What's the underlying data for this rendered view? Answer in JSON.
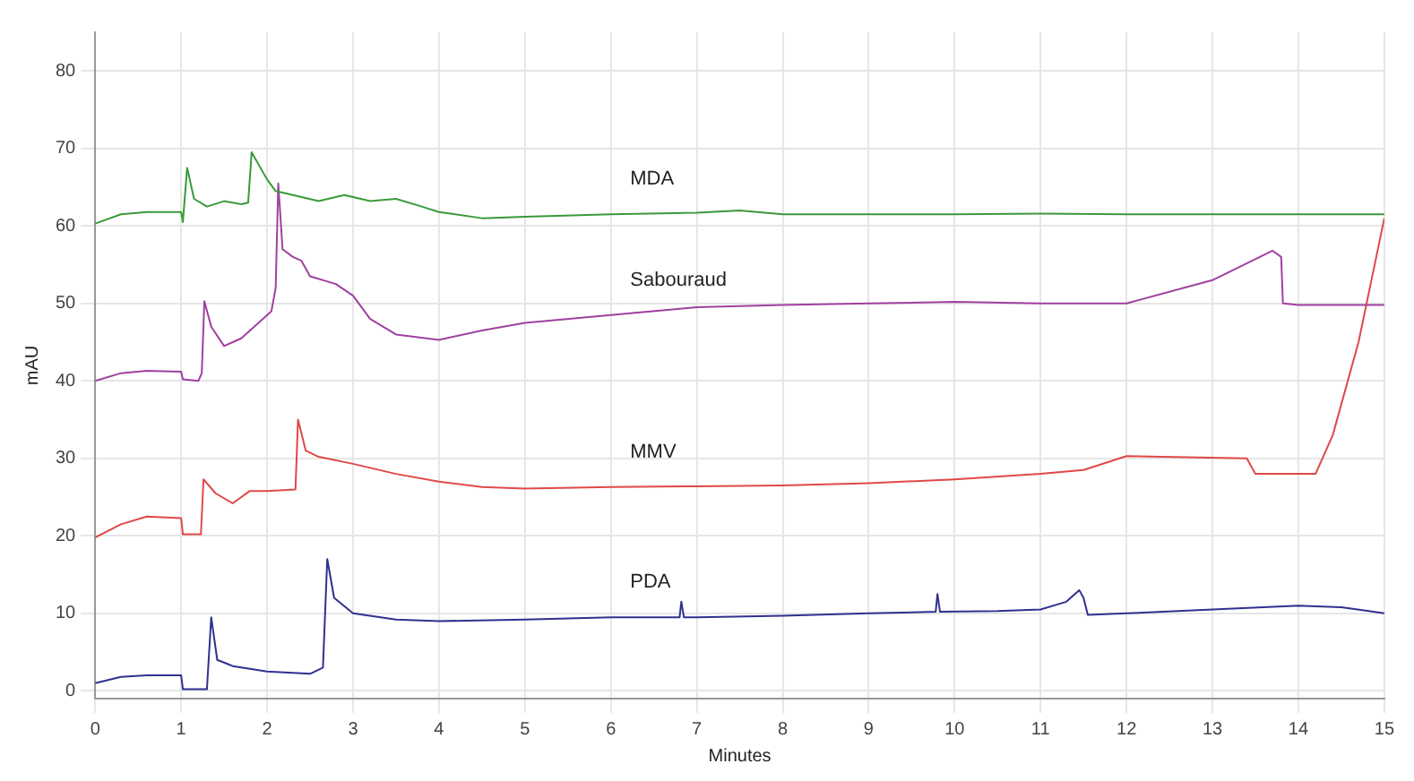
{
  "chart_data": {
    "type": "line",
    "xlabel": "Minutes",
    "ylabel": "mAU",
    "xlim": [
      0,
      15
    ],
    "xticks": [
      0,
      1,
      2,
      3,
      4,
      5,
      6,
      7,
      8,
      9,
      10,
      11,
      12,
      13,
      14,
      15
    ],
    "ylim": [
      -1,
      85
    ],
    "yticks": [
      0,
      10,
      20,
      30,
      40,
      50,
      60,
      70,
      80
    ],
    "grid": true,
    "legend": false,
    "marker": "none",
    "line_style": "solid",
    "series": [
      {
        "name": "MDA",
        "color": "#3a9a3a",
        "x": [
          0,
          0.3,
          0.6,
          1.0,
          1.02,
          1.07,
          1.15,
          1.3,
          1.5,
          1.7,
          1.78,
          1.82,
          2.0,
          2.1,
          2.3,
          2.6,
          2.9,
          3.2,
          3.5,
          3.8,
          4.0,
          4.5,
          5,
          6,
          7,
          7.5,
          8,
          9,
          10,
          11,
          12,
          13,
          14,
          15
        ],
        "values": [
          60.3,
          61.5,
          61.8,
          61.8,
          60.5,
          67.5,
          63.5,
          62.5,
          63.2,
          62.8,
          63,
          69.5,
          66,
          64.5,
          64,
          63.2,
          64,
          63.2,
          63.5,
          62.5,
          61.8,
          61,
          61.2,
          61.5,
          61.7,
          62,
          61.5,
          61.5,
          61.5,
          61.6,
          61.5,
          61.5,
          61.5,
          61.5
        ]
      },
      {
        "name": "Sabouraud",
        "color": "#a040a0",
        "x": [
          0,
          0.3,
          0.6,
          1.0,
          1.02,
          1.2,
          1.24,
          1.27,
          1.35,
          1.5,
          1.7,
          1.9,
          2.05,
          2.1,
          2.13,
          2.18,
          2.3,
          2.4,
          2.5,
          2.8,
          3.0,
          3.2,
          3.5,
          4.0,
          4.5,
          5,
          6,
          7,
          8,
          9,
          10,
          11,
          12,
          13,
          13.7,
          13.8,
          13.82,
          14,
          14.5,
          15
        ],
        "values": [
          40,
          41,
          41.3,
          41.2,
          40.2,
          40,
          41,
          50.3,
          47,
          44.5,
          45.5,
          47.5,
          49,
          52,
          65.5,
          57,
          56,
          55.5,
          53.5,
          52.5,
          51,
          48,
          46,
          45.3,
          46.5,
          47.5,
          48.5,
          49.5,
          49.8,
          50,
          50.2,
          50,
          50,
          53,
          56.8,
          56,
          50,
          49.8,
          49.8,
          49.8
        ]
      },
      {
        "name": "MMV",
        "color": "#e04848",
        "x": [
          0,
          0.3,
          0.6,
          1.0,
          1.02,
          1.23,
          1.26,
          1.4,
          1.6,
          1.8,
          2.0,
          2.33,
          2.36,
          2.45,
          2.6,
          3,
          3.5,
          4,
          4.5,
          5,
          6,
          7,
          8,
          9,
          10,
          11,
          11.5,
          12,
          13.4,
          13.5,
          14.2,
          14.4,
          14.7,
          15
        ],
        "values": [
          19.8,
          21.5,
          22.5,
          22.3,
          20.2,
          20.2,
          27.3,
          25.5,
          24.2,
          25.8,
          25.8,
          26,
          35,
          31,
          30.2,
          29.3,
          28,
          27,
          26.3,
          26.1,
          26.3,
          26.4,
          26.5,
          26.8,
          27.3,
          28,
          28.5,
          30.3,
          30,
          28,
          28,
          33,
          45,
          61
        ]
      },
      {
        "name": "PDA",
        "color": "#303090",
        "x": [
          0,
          0.3,
          0.6,
          1.0,
          1.02,
          1.3,
          1.35,
          1.42,
          1.6,
          2.0,
          2.5,
          2.65,
          2.7,
          2.78,
          3,
          3.5,
          4,
          5,
          6,
          6.8,
          6.82,
          6.85,
          7,
          8,
          9,
          9.78,
          9.8,
          9.83,
          10.5,
          11,
          11.3,
          11.45,
          11.5,
          11.55,
          12,
          13,
          14,
          14.5,
          15
        ],
        "values": [
          1,
          1.8,
          2,
          2,
          0.2,
          0.2,
          9.5,
          4,
          3.2,
          2.5,
          2.2,
          3,
          17,
          12,
          10,
          9.2,
          9,
          9.2,
          9.5,
          9.5,
          11.5,
          9.5,
          9.5,
          9.7,
          10,
          10.2,
          12.5,
          10.2,
          10.3,
          10.5,
          11.5,
          13,
          12,
          9.8,
          10,
          10.5,
          11,
          10.8,
          10
        ]
      }
    ]
  }
}
